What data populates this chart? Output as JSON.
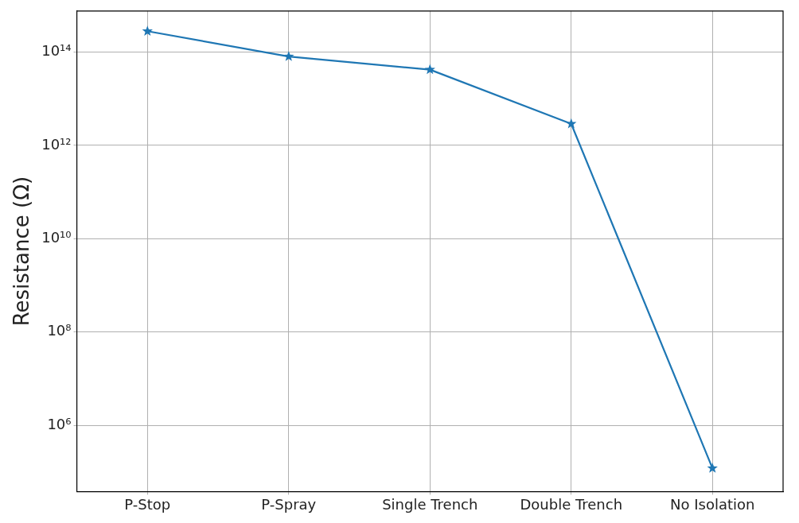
{
  "chart_data": {
    "type": "line",
    "ylabel": "Resistance (Ω)",
    "categories": [
      "P-Stop",
      "P-Spray",
      "Single Trench",
      "Double Trench",
      "No Isolation"
    ],
    "series": [
      {
        "color": "#1f77b4",
        "values": [
          280000000000000.0,
          80000000000000.0,
          42000000000000.0,
          2900000000000.0,
          120000.0
        ]
      }
    ],
    "log": "y",
    "ylim": [
      38000,
      760000000000000.0
    ],
    "yticks": [
      {
        "value": 1000000.0,
        "label": "10⁶"
      },
      {
        "value": 100000000.0,
        "label": "10⁸"
      },
      {
        "value": 10000000000.0,
        "label": "10¹⁰"
      },
      {
        "value": 1000000000000.0,
        "label": "10¹²"
      },
      {
        "value": 100000000000000.0,
        "label": "10¹⁴"
      }
    ],
    "grid": true,
    "marker": "star",
    "line_style": "solid",
    "legend": false
  }
}
